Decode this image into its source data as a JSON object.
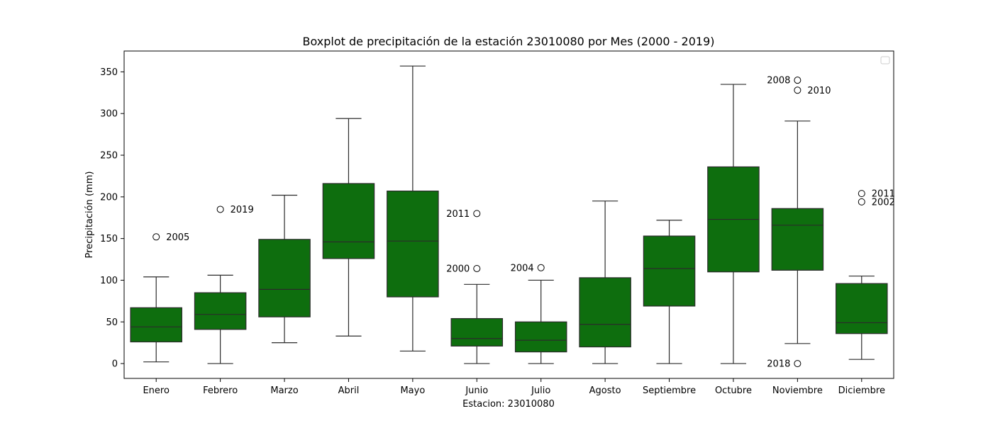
{
  "chart_data": {
    "type": "boxplot",
    "title": "Boxplot de precipitación de la estación 23010080 por Mes (2000 - 2019)",
    "xlabel": "Estacion: 23010080",
    "ylabel": "Precipitación (mm)",
    "ylim": [
      -17.8,
      375
    ],
    "yticks": [
      0,
      50,
      100,
      150,
      200,
      250,
      300,
      350
    ],
    "grid": false,
    "legend": "top-right (empty)",
    "box_color": "#0e6e0e",
    "categories": [
      "Enero",
      "Febrero",
      "Marzo",
      "Abril",
      "Mayo",
      "Junio",
      "Julio",
      "Agosto",
      "Septiembre",
      "Octubre",
      "Noviembre",
      "Diciembre"
    ],
    "boxes": [
      {
        "category": "Enero",
        "whisker_low": 2,
        "q1": 26,
        "median": 44,
        "q3": 67,
        "whisker_high": 104,
        "outliers": [
          {
            "value": 152,
            "label": "2005",
            "label_side": "right"
          }
        ]
      },
      {
        "category": "Febrero",
        "whisker_low": 0,
        "q1": 41,
        "median": 59,
        "q3": 85,
        "whisker_high": 106,
        "outliers": [
          {
            "value": 185,
            "label": "2019",
            "label_side": "right"
          }
        ]
      },
      {
        "category": "Marzo",
        "whisker_low": 25,
        "q1": 56,
        "median": 89,
        "q3": 149,
        "whisker_high": 202,
        "outliers": []
      },
      {
        "category": "Abril",
        "whisker_low": 33,
        "q1": 126,
        "median": 146,
        "q3": 216,
        "whisker_high": 294,
        "outliers": []
      },
      {
        "category": "Mayo",
        "whisker_low": 15,
        "q1": 80,
        "median": 147,
        "q3": 207,
        "whisker_high": 357,
        "outliers": []
      },
      {
        "category": "Junio",
        "whisker_low": 0,
        "q1": 21,
        "median": 30,
        "q3": 54,
        "whisker_high": 95,
        "outliers": [
          {
            "value": 180,
            "label": "2011",
            "label_side": "left"
          },
          {
            "value": 114,
            "label": "2000",
            "label_side": "left"
          }
        ]
      },
      {
        "category": "Julio",
        "whisker_low": 0,
        "q1": 14,
        "median": 28,
        "q3": 50,
        "whisker_high": 100,
        "outliers": [
          {
            "value": 115,
            "label": "2004",
            "label_side": "left"
          }
        ]
      },
      {
        "category": "Agosto",
        "whisker_low": 0,
        "q1": 20,
        "median": 47,
        "q3": 103,
        "whisker_high": 195,
        "outliers": []
      },
      {
        "category": "Septiembre",
        "whisker_low": 0,
        "q1": 69,
        "median": 114,
        "q3": 153,
        "whisker_high": 172,
        "outliers": []
      },
      {
        "category": "Octubre",
        "whisker_low": 0,
        "q1": 110,
        "median": 173,
        "q3": 236,
        "whisker_high": 335,
        "outliers": []
      },
      {
        "category": "Noviembre",
        "whisker_low": 24,
        "q1": 112,
        "median": 166,
        "q3": 186,
        "whisker_high": 291,
        "outliers": [
          {
            "value": 340,
            "label": "2008",
            "label_side": "left"
          },
          {
            "value": 328,
            "label": "2010",
            "label_side": "right"
          },
          {
            "value": 0,
            "label": "2018",
            "label_side": "left"
          }
        ]
      },
      {
        "category": "Diciembre",
        "whisker_low": 5,
        "q1": 36,
        "median": 49,
        "q3": 96,
        "whisker_high": 105,
        "outliers": [
          {
            "value": 204,
            "label": "2011",
            "label_side": "right"
          },
          {
            "value": 194,
            "label": "2002",
            "label_side": "right"
          }
        ]
      }
    ]
  }
}
